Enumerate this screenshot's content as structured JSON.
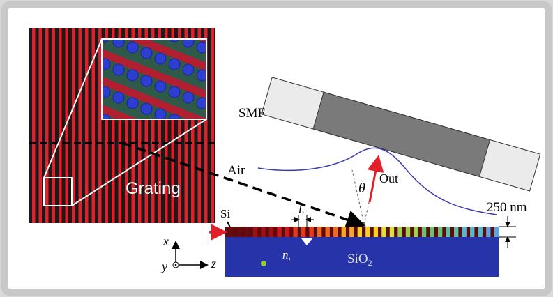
{
  "labels": {
    "smf": "SMF",
    "air": "Air",
    "grating": "Grating",
    "out": "Out",
    "theta": "θ",
    "si": "Si",
    "thickness": "250 nm",
    "period": {
      "base": "l",
      "sub": "i"
    },
    "index": {
      "base": "n",
      "sub": "i"
    },
    "substrate": {
      "base": "SiO",
      "sub": "2"
    },
    "axes": {
      "x": "x",
      "y": "y",
      "z": "z"
    }
  }
}
